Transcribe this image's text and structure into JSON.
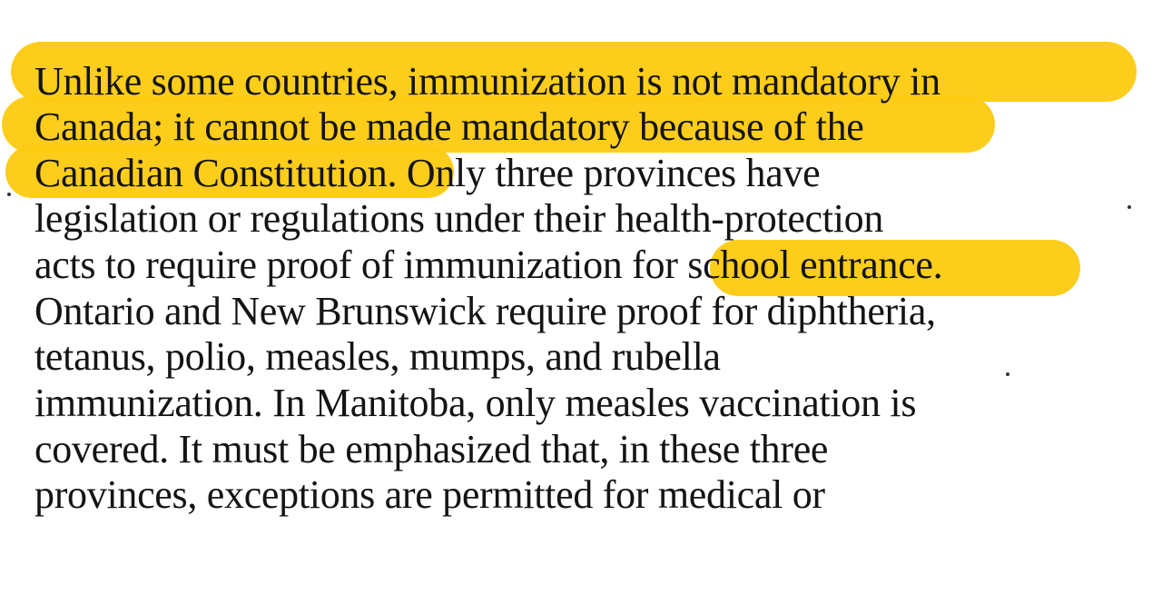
{
  "document": {
    "previous_line_fragment": "",
    "lines": [
      "Unlike some countries, immunization is not mandatory in",
      "Canada; it cannot be made mandatory because of the",
      "Canadian Constitution. Only three provinces have",
      "legislation or regulations under their health-protection",
      "acts to require proof of immunization for school entrance.",
      "Ontario and New Brunswick require proof for diphtheria,",
      "tetanus, polio, measles, mumps, and rubella",
      "immunization. In Manitoba, only measles vaccination is",
      "covered. It must be emphasized that, in these three",
      "provinces, exceptions are permitted for medical or"
    ]
  },
  "colors": {
    "highlight": "#fdca10",
    "text": "#141414",
    "background": "#ffffff"
  }
}
